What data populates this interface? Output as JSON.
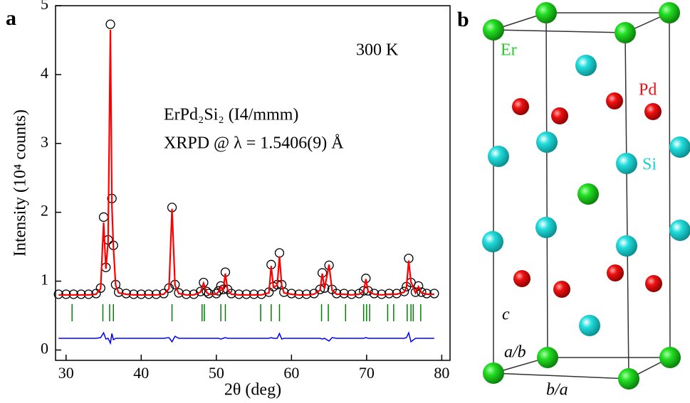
{
  "panel_labels": [
    "a",
    "b"
  ],
  "chart_data": {
    "type": "rietveld",
    "xlabel": "2θ (deg)",
    "ylabel": "Intensity (10⁴ counts)",
    "annotations": [
      "300 K",
      "ErPd₂Si₂ (I4/mmm)",
      "XRPD @ λ = 1.5406(9) Å"
    ],
    "xlim": [
      28.6,
      81.1
    ],
    "ylim": [
      -0.15,
      5
    ],
    "xticks": [
      30,
      40,
      50,
      60,
      70,
      80
    ],
    "yticks": [
      0,
      1,
      2,
      3,
      4,
      5
    ],
    "x": [
      29,
      30,
      31,
      32,
      33,
      34,
      34.6,
      35.0,
      35.3,
      35.6,
      35.9,
      36.1,
      36.3,
      36.6,
      37,
      38,
      39,
      40,
      41,
      42,
      43,
      43.7,
      44.1,
      44.5,
      45,
      46,
      47,
      47.9,
      48.3,
      48.7,
      49,
      50,
      50.3,
      50.6,
      50.9,
      51.2,
      51.5,
      52,
      53,
      54,
      55,
      56,
      57,
      57.3,
      57.6,
      58.1,
      58.4,
      58.7,
      59,
      60,
      61,
      62,
      63,
      63.8,
      64.1,
      64.4,
      65.0,
      65.4,
      66,
      67,
      68,
      69,
      69.6,
      69.9,
      70.2,
      71,
      72,
      73,
      74,
      75,
      75.3,
      75.6,
      75.9,
      76.5,
      76.9,
      77.3,
      78,
      79
    ],
    "series": [
      {
        "color": "#000000",
        "values": [
          0.81,
          0.81,
          0.81,
          0.81,
          0.81,
          0.82,
          0.9,
          1.93,
          1.2,
          1.6,
          4.73,
          2.2,
          1.52,
          0.95,
          0.84,
          0.82,
          0.81,
          0.81,
          0.81,
          0.81,
          0.82,
          0.9,
          2.07,
          0.95,
          0.83,
          0.81,
          0.81,
          0.85,
          0.98,
          0.85,
          0.82,
          0.82,
          0.86,
          0.93,
          0.88,
          1.13,
          0.88,
          0.82,
          0.81,
          0.81,
          0.81,
          0.81,
          0.84,
          1.24,
          0.92,
          0.95,
          1.41,
          0.95,
          0.84,
          0.82,
          0.81,
          0.81,
          0.82,
          0.88,
          1.12,
          0.9,
          1.23,
          0.88,
          0.82,
          0.82,
          0.81,
          0.82,
          0.86,
          1.04,
          0.86,
          0.82,
          0.81,
          0.82,
          0.82,
          0.85,
          0.92,
          1.33,
          0.98,
          0.84,
          0.93,
          0.84,
          0.82,
          0.82
        ]
      },
      {
        "color": "#ff0000",
        "values": [
          0.8,
          0.8,
          0.8,
          0.8,
          0.8,
          0.81,
          0.89,
          1.85,
          1.18,
          1.58,
          4.65,
          2.1,
          1.5,
          0.94,
          0.83,
          0.81,
          0.8,
          0.8,
          0.8,
          0.8,
          0.81,
          0.89,
          2.05,
          0.94,
          0.82,
          0.8,
          0.8,
          0.84,
          0.97,
          0.84,
          0.81,
          0.81,
          0.85,
          0.92,
          0.87,
          1.11,
          0.87,
          0.81,
          0.8,
          0.8,
          0.8,
          0.8,
          0.83,
          1.22,
          0.91,
          0.94,
          1.36,
          0.94,
          0.83,
          0.81,
          0.8,
          0.8,
          0.81,
          0.87,
          1.11,
          0.89,
          1.24,
          0.87,
          0.81,
          0.81,
          0.8,
          0.81,
          0.85,
          1.03,
          0.85,
          0.81,
          0.8,
          0.81,
          0.81,
          0.84,
          0.91,
          1.3,
          0.99,
          0.83,
          0.92,
          0.83,
          0.81,
          0.81
        ]
      },
      {
        "color": "#0000ff",
        "values": [
          0.17,
          0.17,
          0.17,
          0.17,
          0.17,
          0.17,
          0.18,
          0.25,
          0.16,
          0.17,
          0.1,
          0.24,
          0.15,
          0.17,
          0.17,
          0.17,
          0.17,
          0.17,
          0.17,
          0.17,
          0.17,
          0.18,
          0.12,
          0.2,
          0.17,
          0.17,
          0.17,
          0.17,
          0.17,
          0.17,
          0.17,
          0.17,
          0.17,
          0.16,
          0.17,
          0.18,
          0.17,
          0.17,
          0.17,
          0.17,
          0.17,
          0.17,
          0.17,
          0.18,
          0.17,
          0.17,
          0.24,
          0.16,
          0.17,
          0.17,
          0.17,
          0.17,
          0.17,
          0.17,
          0.16,
          0.17,
          0.13,
          0.18,
          0.17,
          0.17,
          0.17,
          0.17,
          0.17,
          0.18,
          0.17,
          0.17,
          0.17,
          0.17,
          0.17,
          0.17,
          0.18,
          0.25,
          0.12,
          0.17,
          0.17,
          0.17,
          0.17,
          0.17
        ]
      }
    ],
    "bragg": {
      "color": "#008000",
      "x": [
        30.8,
        34.9,
        35.8,
        36.3,
        44.1,
        48.1,
        48.4,
        50.6,
        51.2,
        55.9,
        57.3,
        58.4,
        64.0,
        64.9,
        67.2,
        69.6,
        70.0,
        70.4,
        72.8,
        73.6,
        75.4,
        75.9,
        76.2,
        77.2
      ]
    }
  },
  "structure": {
    "atoms": [
      "Er",
      "Pd",
      "Si"
    ],
    "axes": [
      "c",
      "a/b",
      "b/a"
    ]
  }
}
